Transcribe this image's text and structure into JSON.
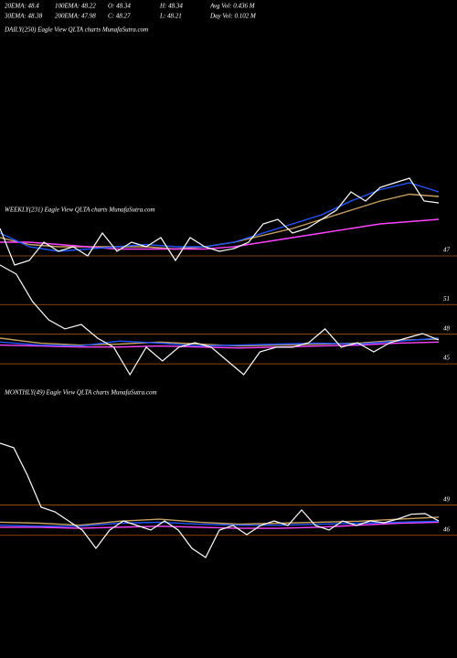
{
  "header": [
    "20EMA: 48.4",
    "100EMA: 48.22",
    "O: 48.34",
    "H: 48.34",
    "Avg Vol: 0.436  M",
    "30EMA: 48.38",
    "200EMA: 47.98",
    "C: 48.27",
    "L: 48.21",
    "Day Vol: 0.102  M"
  ],
  "chart_data": [
    {
      "type": "line",
      "title": "DAILY(250) Eagle  View  QLTA charts MunafaSutra.com",
      "ylim": [
        46.6,
        49.4
      ],
      "yticks": [
        47
      ],
      "series": [
        {
          "color": "#ffffff",
          "values": [
            47.6,
            46.8,
            46.9,
            47.3,
            47.1,
            47.2,
            47.0,
            47.5,
            47.1,
            47.3,
            47.2,
            47.4,
            46.9,
            47.4,
            47.2,
            47.1,
            47.16,
            47.3,
            47.7,
            47.8,
            47.5,
            47.6,
            47.8,
            48.0,
            48.4,
            48.2,
            48.5,
            48.6,
            48.7,
            48.2,
            48.16
          ]
        },
        {
          "color": "#2255ff",
          "values": [
            47.5,
            47.2,
            47.1,
            47.15,
            47.2,
            47.25,
            47.2,
            47.2,
            47.3,
            47.5,
            47.7,
            47.9,
            48.2,
            48.45,
            48.6,
            48.4
          ]
        },
        {
          "color": "#ff44ff",
          "values": [
            47.3,
            47.3,
            47.25,
            47.2,
            47.15,
            47.15,
            47.15,
            47.15,
            47.2,
            47.3,
            47.4,
            47.5,
            47.6,
            47.7,
            47.75,
            47.8
          ]
        },
        {
          "color": "#c8a060",
          "values": [
            47.4,
            47.25,
            47.2,
            47.2,
            47.2,
            47.2,
            47.15,
            47.2,
            47.3,
            47.45,
            47.6,
            47.8,
            48.0,
            48.2,
            48.35,
            48.3
          ]
        }
      ]
    },
    {
      "type": "line",
      "title": "WEEKLY(231) Eagle  View  QLTA charts MunafaSutra.com",
      "ylim": [
        43.9,
        55.0
      ],
      "yticks": [
        51,
        48,
        45
      ],
      "series": [
        {
          "color": "#ffffff",
          "values": [
            55.0,
            54.08,
            51.3,
            49.45,
            48.53,
            48.99,
            47.6,
            46.68,
            43.9,
            46.68,
            45.29,
            46.68,
            47.14,
            46.68,
            45.29,
            43.9,
            46.21,
            46.68,
            46.68,
            47.14,
            48.53,
            46.68,
            47.14,
            46.21,
            47.14,
            47.6,
            48.06,
            47.42
          ]
        },
        {
          "color": "#2255ff",
          "values": [
            47.2,
            46.9,
            46.8,
            47.3,
            47.1,
            46.8,
            46.9,
            47.0,
            47.1,
            47.0,
            47.3,
            47.6
          ]
        },
        {
          "color": "#ff44ff",
          "values": [
            46.9,
            46.8,
            46.7,
            46.7,
            46.8,
            46.7,
            46.6,
            46.7,
            46.8,
            46.9,
            47.1,
            47.2
          ]
        },
        {
          "color": "#c8a060",
          "values": [
            47.6,
            47.1,
            46.9,
            47.0,
            47.2,
            47.0,
            46.8,
            46.9,
            47.0,
            47.1,
            47.4,
            47.5
          ]
        }
      ]
    },
    {
      "type": "line",
      "title": "MONTHLY(49) Eagle  View  QLTA charts MunafaSutra.com",
      "ylim": [
        43.8,
        55.6
      ],
      "yticks": [
        49,
        46
      ],
      "series": [
        {
          "color": "#ffffff",
          "values": [
            55.15,
            54.7,
            51.97,
            48.79,
            48.34,
            47.43,
            46.52,
            44.71,
            46.52,
            47.43,
            46.98,
            46.52,
            47.43,
            46.52,
            44.71,
            43.8,
            46.52,
            46.98,
            46.07,
            46.98,
            47.43,
            46.98,
            48.52,
            46.98,
            46.52,
            47.43,
            46.98,
            47.43,
            47.25,
            47.61,
            48.09,
            48.16,
            47.43
          ]
        },
        {
          "color": "#2255ff",
          "values": [
            47.0,
            46.9,
            46.9,
            47.2,
            47.3,
            47.1,
            47.0,
            47.0,
            47.1,
            47.2,
            47.3,
            47.4
          ]
        },
        {
          "color": "#ff44ff",
          "values": [
            46.8,
            46.8,
            46.7,
            46.8,
            46.9,
            46.8,
            46.7,
            46.7,
            46.8,
            47.0,
            47.2,
            47.3
          ]
        },
        {
          "color": "#c8a060",
          "values": [
            47.3,
            47.2,
            47.0,
            47.4,
            47.6,
            47.3,
            47.1,
            47.2,
            47.3,
            47.4,
            47.6,
            47.8
          ]
        }
      ]
    }
  ]
}
